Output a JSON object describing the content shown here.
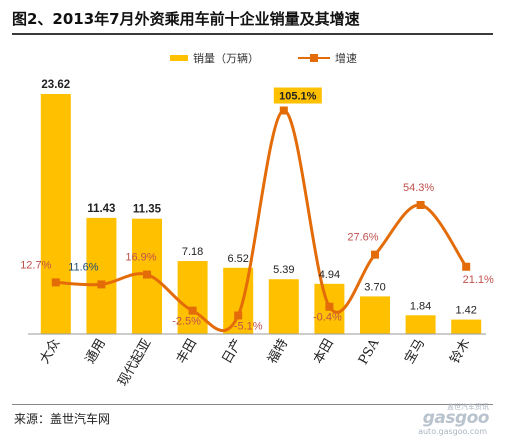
{
  "title": "图2、2013年7月外资乘用车前十企业销量及其增速",
  "source": "来源：盖世汽车网",
  "watermark": {
    "top": "盖世汽车资讯",
    "main": "gasgoo",
    "bottom": "auto.gasgoo.com"
  },
  "colors": {
    "bar": "#FFC000",
    "line": "#E36C09",
    "highlight_fill": "#FFC000"
  },
  "chart_data": {
    "type": "bar",
    "categories": [
      "大众",
      "通用",
      "现代起亚",
      "丰田",
      "日产",
      "福特",
      "本田",
      "PSA",
      "宝马",
      "铃木"
    ],
    "series": [
      {
        "name": "销量（万辆）",
        "type": "bar",
        "values": [
          23.62,
          11.43,
          11.35,
          7.18,
          6.52,
          5.39,
          4.94,
          3.7,
          1.84,
          1.42
        ],
        "labels": [
          "23.62",
          "11.43",
          "11.35",
          "7.18",
          "6.52",
          "5.39",
          "4.94",
          "3.70",
          "1.84",
          "1.42"
        ]
      },
      {
        "name": "增速",
        "type": "line",
        "values": [
          12.7,
          11.6,
          16.9,
          -2.5,
          -5.1,
          105.1,
          -0.4,
          27.6,
          54.3,
          21.1
        ],
        "labels": [
          "12.7%",
          "11.6%",
          "16.9%",
          "-2.5%",
          "-5.1%",
          "105.1%",
          "-0.4%",
          "27.6%",
          "54.3%",
          "21.1%"
        ]
      }
    ],
    "legend_position": "top-center",
    "grid": false
  }
}
